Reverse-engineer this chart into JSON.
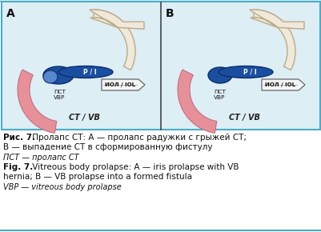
{
  "fig_width": 4.02,
  "fig_height": 2.9,
  "dpi": 100,
  "bg_color": "#ffffff",
  "border_color": "#4bacc6",
  "image_bg": "#ddeef5",
  "label_A": "A",
  "label_B": "B",
  "caption_bold1": "Рис. 7.",
  "caption_normal1": " Пролапс СТ: А — пролапс радужки с грыжей СТ;",
  "caption_line2": "В — выпадение СТ в сформированную фистулу",
  "italic_line1": "ПСТ — пролапс СТ",
  "fig_bold1": "Fig. 7.",
  "fig_normal1": " Vitreous body prolapse: A — iris prolapse with VB",
  "fig_line2": "hernia; B — VB prolapse into a formed fistula",
  "italic_line2": "VBP — vitreous body prolapse",
  "blue_iris": "#1a4fa0",
  "blue_dark": "#0d2d6b",
  "blue_light": "#5588cc",
  "pink_color": "#e8909a",
  "pink_dark": "#c07080",
  "cream_flap": "#f0e8d8",
  "cream_outline": "#bbaa88",
  "sclera_color": "#e8ddd0",
  "iol_color": "#f5f5f5",
  "iol_outline": "#666666",
  "tissue_outline": "#888888",
  "label_PI": "P / I",
  "label_VBP": "ПСТ\nVBP",
  "label_IOL": "ИОЛ / IOL",
  "label_CT": "СТ / VB",
  "text_color": "#111111",
  "fontsize_caption": 7.5,
  "fontsize_italic": 7.0,
  "fontsize_label": 10
}
